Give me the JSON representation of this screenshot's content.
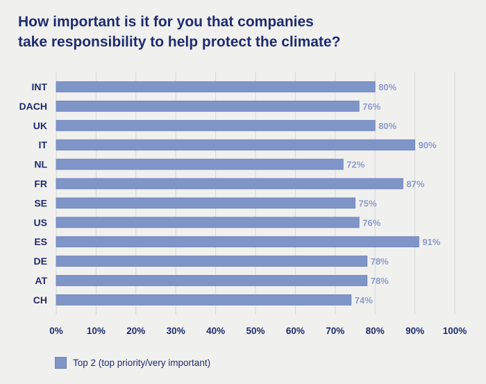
{
  "title_lines": [
    "How important is it for you that companies",
    "take responsibility to help protect the climate?"
  ],
  "colors": {
    "bar": "#7f95c8",
    "bar_border": "#6a7fb8",
    "grid": "#d8d8d6",
    "title": "#1f2b6e",
    "value_label": "#8d9bc9"
  },
  "chart_data": {
    "type": "bar",
    "orientation": "horizontal",
    "categories": [
      "INT",
      "DACH",
      "UK",
      "IT",
      "NL",
      "FR",
      "SE",
      "US",
      "ES",
      "DE",
      "AT",
      "CH"
    ],
    "series": [
      {
        "name": "Top 2 (top priority/very important)",
        "values": [
          80,
          76,
          80,
          90,
          72,
          87,
          75,
          76,
          91,
          78,
          78,
          74
        ]
      }
    ],
    "value_labels": [
      "80%",
      "76%",
      "80%",
      "90%",
      "72%",
      "87%",
      "75%",
      "76%",
      "91%",
      "78%",
      "78%",
      "74%"
    ],
    "x_ticks": [
      "0%",
      "10%",
      "20%",
      "30%",
      "40%",
      "50%",
      "60%",
      "70%",
      "80%",
      "90%",
      "100%"
    ],
    "xlim": [
      0,
      100
    ],
    "grid": true,
    "legend_position": "bottom-left"
  }
}
